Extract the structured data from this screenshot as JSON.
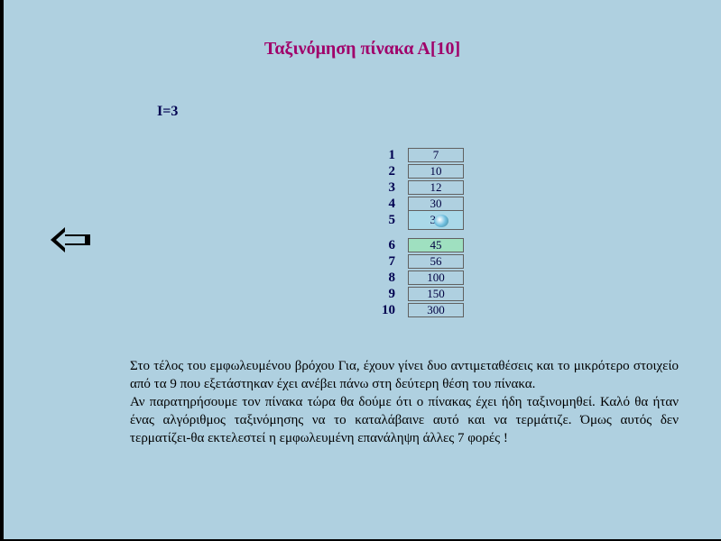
{
  "title": "Ταξινόμηση πίνακα Α[10]",
  "counter": "I=3",
  "array": {
    "indices": [
      "1",
      "2",
      "3",
      "4",
      "5",
      "6",
      "7",
      "8",
      "9",
      "10"
    ],
    "cells": [
      {
        "value": "7",
        "highlight": false,
        "swap": false
      },
      {
        "value": "10",
        "highlight": false,
        "swap": false
      },
      {
        "value": "12",
        "highlight": false,
        "swap": false
      },
      {
        "value": "30",
        "highlight": false,
        "swap": false
      },
      {
        "value": "35",
        "highlight": false,
        "swap": true
      },
      {
        "value": "45",
        "highlight": true,
        "swap": false
      },
      {
        "value": "56",
        "highlight": false,
        "swap": false
      },
      {
        "value": "100",
        "highlight": false,
        "swap": false
      },
      {
        "value": "150",
        "highlight": false,
        "swap": false
      },
      {
        "value": "300",
        "highlight": false,
        "swap": false
      }
    ],
    "gap_after_index": 5,
    "index_color": "#000050",
    "cell_border": "#606060",
    "highlight_bg": "#9fe0c0"
  },
  "paragraph": {
    "line1": "Στο τέλος του εμφωλευμένου βρόχου Για, έχουν γίνει δυο αντιμεταθέσεις και το μικρότερο στοιχείο από τα 9 που εξετάστηκαν έχει ανέβει πάνω στη δεύτερη θέση του πίνακα.",
    "line2": "Αν παρατηρήσουμε τον πίνακα τώρα θα δούμε ότι ο πίνακας έχει ήδη ταξινομηθεί. Καλό θα ήταν ένας αλγόριθμος ταξινόμησης να το καταλάβαινε αυτό και να τερμάτιζε. Όμως αυτός δεν τερματίζει-θα εκτελεστεί η εμφωλευμένη επανάληψη άλλες 7 φορές !"
  },
  "colors": {
    "page_bg": "#afd0e0",
    "title_color": "#a0006a",
    "text_color": "#000000"
  },
  "back_button": {
    "name": "back-arrow"
  }
}
